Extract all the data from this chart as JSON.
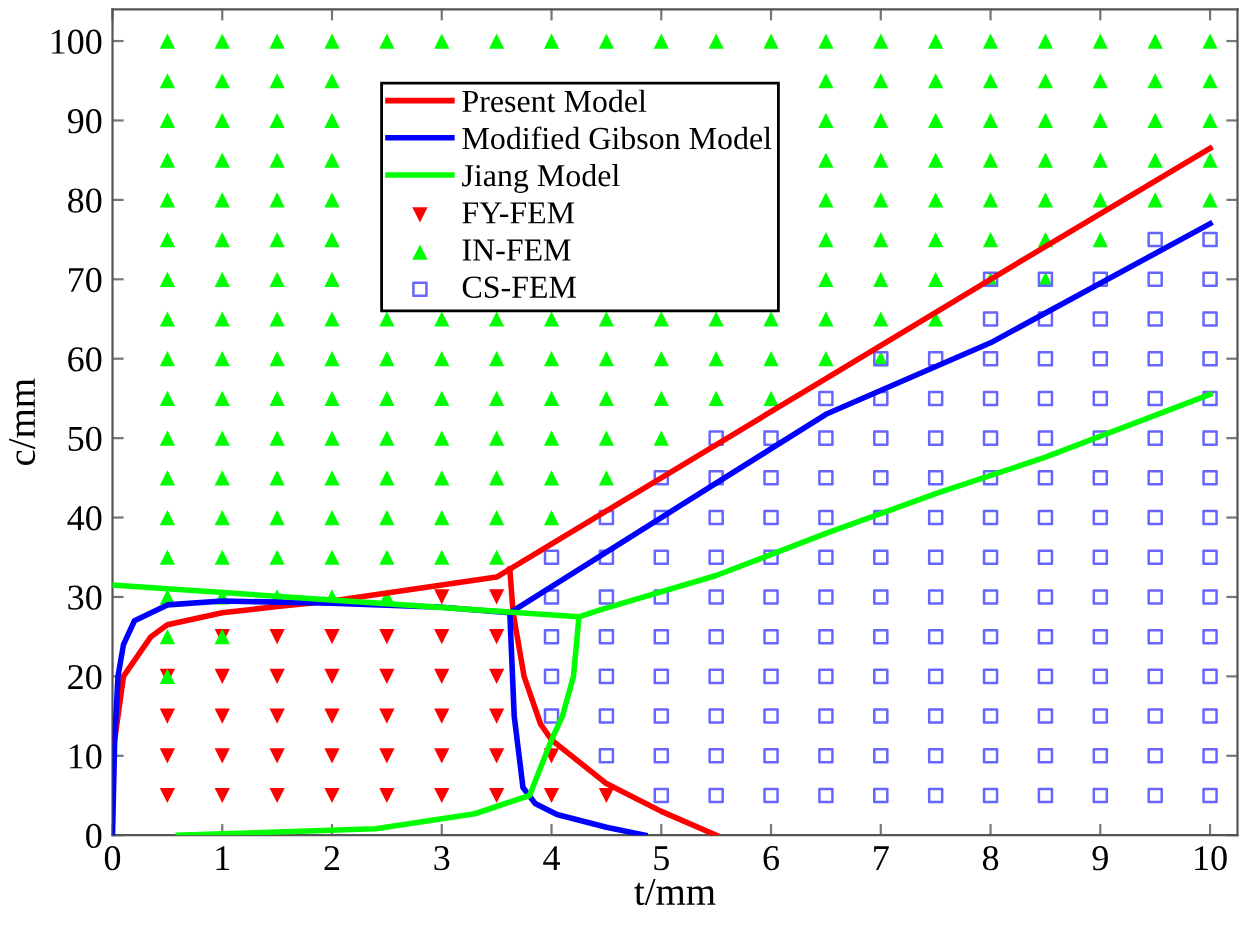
{
  "chart_data": {
    "type": "line",
    "xlabel": "t/mm",
    "ylabel": "c/mm",
    "xlim": [
      0,
      10.25
    ],
    "ylim": [
      0,
      104
    ],
    "xticks": [
      0,
      1,
      2,
      3,
      4,
      5,
      6,
      7,
      8,
      9,
      10
    ],
    "yticks": [
      0,
      10,
      20,
      30,
      40,
      50,
      60,
      70,
      80,
      90,
      100
    ],
    "grid": false,
    "legend": "top",
    "line_style": "solid",
    "series": [
      {
        "name": "Present Model",
        "color": "#ff0000",
        "marker": "none",
        "x": [
          0.02,
          0.1,
          0.35,
          0.5,
          1,
          1.5,
          2,
          2.5,
          3,
          3.5,
          3.62,
          5,
          6.5,
          8,
          10
        ],
        "values": [
          12,
          20,
          25,
          26.5,
          28,
          28.8,
          29.5,
          30.5,
          31.5,
          32.5,
          33.5,
          45,
          57.5,
          70,
          86.5
        ]
      },
      {
        "color": "#ff0000",
        "marker": "none",
        "x": [
          3.62,
          3.65,
          3.75,
          3.9,
          4,
          4.5,
          5,
          5.5
        ],
        "values": [
          33.5,
          28,
          20,
          14,
          12,
          6.5,
          3,
          0
        ]
      },
      {
        "name": "Modified Gibson Model",
        "color": "#0000ff",
        "marker": "none",
        "x": [
          0,
          0.02,
          0.05,
          0.1,
          0.2,
          0.5,
          1,
          2,
          3,
          3.62,
          5,
          6.5,
          8,
          10
        ],
        "values": [
          0,
          12,
          20,
          24,
          27,
          29,
          29.5,
          29.2,
          28.7,
          28,
          40,
          53,
          62,
          77
        ]
      },
      {
        "color": "#0000ff",
        "marker": "none",
        "x": [
          3.62,
          3.66,
          3.74,
          3.85,
          4.05,
          4.5,
          4.85
        ],
        "values": [
          28,
          15,
          6,
          4,
          2.6,
          1,
          0
        ]
      },
      {
        "name": "Jiang Model",
        "color": "#00ff00",
        "marker": "none",
        "x": [
          0,
          4.25,
          4.45,
          5.5,
          6.5,
          7.5,
          8.5,
          10
        ],
        "values": [
          31.5,
          27.5,
          28.4,
          32.7,
          38,
          43,
          47.6,
          55.5
        ]
      },
      {
        "color": "#00ff00",
        "marker": "none",
        "x": [
          4.25,
          4.2,
          4.1,
          4,
          3.8,
          3.3,
          2.4,
          0.6
        ],
        "values": [
          27.5,
          20,
          15,
          12,
          5,
          2.7,
          0.8,
          0
        ]
      },
      {
        "name": "FY-FEM",
        "type": "scatter",
        "color": "#ff0000",
        "marker": "triangle_down",
        "x": [
          0.5,
          0.5,
          0.5,
          0.5,
          1,
          1,
          1,
          1,
          1,
          1.5,
          1.5,
          1.5,
          1.5,
          1.5,
          2,
          2,
          2,
          2,
          2,
          2.5,
          2.5,
          2.5,
          2.5,
          2.5,
          3,
          3,
          3,
          3,
          3,
          3,
          3.5,
          3.5,
          3.5,
          3.5,
          3.5,
          3.5,
          4,
          4,
          4.5
        ],
        "values": [
          5,
          10,
          15,
          20,
          5,
          10,
          15,
          20,
          25,
          5,
          10,
          15,
          20,
          25,
          5,
          10,
          15,
          20,
          25,
          5,
          10,
          15,
          20,
          25,
          5,
          10,
          15,
          20,
          25,
          30,
          5,
          10,
          15,
          20,
          25,
          30,
          5,
          10,
          5
        ]
      },
      {
        "name": "IN-FEM",
        "type": "scatter",
        "color": "#00ff00",
        "marker": "triangle",
        "x": [
          0.5,
          0.5,
          0.5,
          0.5,
          0.5,
          0.5,
          0.5,
          0.5,
          0.5,
          0.5,
          0.5,
          0.5,
          0.5,
          0.5,
          0.5,
          0.5,
          0.5,
          1,
          1,
          1,
          1,
          1,
          1,
          1,
          1,
          1,
          1,
          1,
          1,
          1,
          1,
          1,
          1,
          1.5,
          1.5,
          1.5,
          1.5,
          1.5,
          1.5,
          1.5,
          1.5,
          1.5,
          1.5,
          1.5,
          1.5,
          1.5,
          1.5,
          1.5,
          2,
          2,
          2,
          2,
          2,
          2,
          2,
          2,
          2,
          2,
          2,
          2,
          2,
          2,
          2,
          2.5,
          2.5,
          2.5,
          2.5,
          2.5,
          2.5,
          2.5,
          2.5,
          2.5,
          3,
          3,
          3,
          3,
          3,
          3,
          3,
          3,
          3.5,
          3.5,
          3.5,
          3.5,
          3.5,
          3.5,
          3.5,
          3.5,
          4,
          4,
          4,
          4,
          4,
          4,
          4,
          4.5,
          4.5,
          4.5,
          4.5,
          4.5,
          4.5,
          5,
          5,
          5,
          5,
          5,
          5.5,
          5.5,
          5.5,
          5.5,
          6,
          6,
          6,
          6,
          6.5,
          6.5,
          6.5,
          6.5,
          6.5,
          6.5,
          6.5,
          6.5,
          6.5,
          7,
          7,
          7,
          7,
          7,
          7,
          7,
          7,
          7,
          7.5,
          7.5,
          7.5,
          7.5,
          7.5,
          7.5,
          7.5,
          7.5,
          8,
          8,
          8,
          8,
          8,
          8,
          8,
          8.5,
          8.5,
          8.5,
          8.5,
          8.5,
          8.5,
          8.5,
          9,
          9,
          9,
          9,
          9,
          9,
          9.5,
          9.5,
          9.5,
          9.5,
          9.5,
          10,
          10,
          10,
          10,
          10
        ],
        "values": [
          20,
          25,
          30,
          35,
          40,
          45,
          50,
          55,
          60,
          65,
          70,
          75,
          80,
          85,
          90,
          95,
          100,
          25,
          30,
          35,
          40,
          45,
          50,
          55,
          60,
          65,
          70,
          75,
          80,
          85,
          90,
          95,
          100,
          30,
          35,
          40,
          45,
          50,
          55,
          60,
          65,
          70,
          75,
          80,
          85,
          90,
          95,
          100,
          30,
          35,
          40,
          45,
          50,
          55,
          60,
          65,
          70,
          75,
          80,
          85,
          90,
          95,
          100,
          30,
          35,
          40,
          45,
          50,
          55,
          60,
          65,
          100,
          35,
          40,
          45,
          50,
          55,
          60,
          65,
          100,
          35,
          40,
          45,
          50,
          55,
          60,
          65,
          100,
          40,
          45,
          50,
          55,
          60,
          65,
          100,
          45,
          50,
          55,
          60,
          65,
          100,
          50,
          55,
          60,
          65,
          100,
          55,
          60,
          65,
          100,
          55,
          60,
          65,
          100,
          60,
          65,
          70,
          75,
          80,
          85,
          90,
          95,
          100,
          60,
          65,
          70,
          75,
          80,
          85,
          90,
          95,
          100,
          65,
          70,
          75,
          80,
          85,
          90,
          95,
          100,
          70,
          75,
          80,
          85,
          90,
          95,
          100,
          70,
          75,
          80,
          85,
          90,
          95,
          100,
          75,
          80,
          85,
          90,
          95,
          100,
          80,
          85,
          90,
          95,
          100,
          80,
          85,
          90,
          95,
          100
        ]
      },
      {
        "name": "CS-FEM",
        "type": "scatter",
        "color": "#6666ff",
        "marker": "square",
        "x": [
          4,
          4,
          4,
          4,
          4,
          4.5,
          4.5,
          4.5,
          4.5,
          4.5,
          4.5,
          4.5,
          5,
          5,
          5,
          5,
          5,
          5,
          5,
          5,
          5,
          5.5,
          5.5,
          5.5,
          5.5,
          5.5,
          5.5,
          5.5,
          5.5,
          5.5,
          5.5,
          6,
          6,
          6,
          6,
          6,
          6,
          6,
          6,
          6,
          6,
          6.5,
          6.5,
          6.5,
          6.5,
          6.5,
          6.5,
          6.5,
          6.5,
          6.5,
          6.5,
          6.5,
          7,
          7,
          7,
          7,
          7,
          7,
          7,
          7,
          7,
          7,
          7,
          7,
          7.5,
          7.5,
          7.5,
          7.5,
          7.5,
          7.5,
          7.5,
          7.5,
          7.5,
          7.5,
          7.5,
          7.5,
          8,
          8,
          8,
          8,
          8,
          8,
          8,
          8,
          8,
          8,
          8,
          8,
          8,
          8,
          8.5,
          8.5,
          8.5,
          8.5,
          8.5,
          8.5,
          8.5,
          8.5,
          8.5,
          8.5,
          8.5,
          8.5,
          8.5,
          8.5,
          9,
          9,
          9,
          9,
          9,
          9,
          9,
          9,
          9,
          9,
          9,
          9,
          9,
          9,
          9.5,
          9.5,
          9.5,
          9.5,
          9.5,
          9.5,
          9.5,
          9.5,
          9.5,
          9.5,
          9.5,
          9.5,
          9.5,
          9.5,
          9.5,
          10,
          10,
          10,
          10,
          10,
          10,
          10,
          10,
          10,
          10,
          10,
          10,
          10,
          10,
          10
        ],
        "values": [
          15,
          20,
          25,
          30,
          35,
          10,
          15,
          20,
          25,
          30,
          35,
          40,
          5,
          10,
          15,
          20,
          25,
          30,
          35,
          40,
          45,
          5,
          10,
          15,
          20,
          25,
          30,
          35,
          40,
          45,
          50,
          5,
          10,
          15,
          20,
          25,
          30,
          35,
          40,
          45,
          50,
          5,
          10,
          15,
          20,
          25,
          30,
          35,
          40,
          45,
          50,
          55,
          5,
          10,
          15,
          20,
          25,
          30,
          35,
          40,
          45,
          50,
          55,
          60,
          5,
          10,
          15,
          20,
          25,
          30,
          35,
          40,
          45,
          50,
          55,
          60,
          5,
          10,
          15,
          20,
          25,
          30,
          35,
          40,
          45,
          50,
          55,
          60,
          65,
          70,
          5,
          10,
          15,
          20,
          25,
          30,
          35,
          40,
          45,
          50,
          55,
          60,
          65,
          70,
          5,
          10,
          15,
          20,
          25,
          30,
          35,
          40,
          45,
          50,
          55,
          60,
          65,
          70,
          5,
          10,
          15,
          20,
          25,
          30,
          35,
          40,
          45,
          50,
          55,
          60,
          65,
          70,
          75,
          5,
          10,
          15,
          20,
          25,
          30,
          35,
          40,
          45,
          50,
          55,
          60,
          65,
          70,
          75
        ]
      }
    ]
  }
}
